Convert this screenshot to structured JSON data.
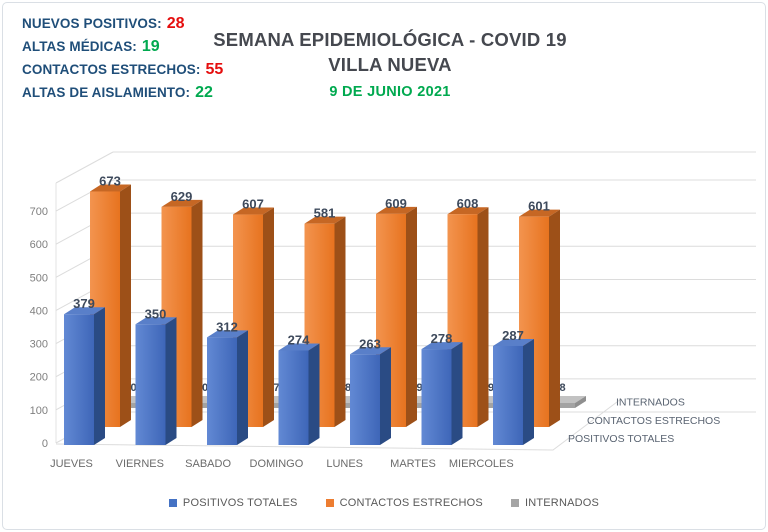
{
  "page": {
    "border_color": "#dadfe5",
    "background": "#ffffff"
  },
  "header": {
    "label_color": "#1F4E79",
    "stats": [
      {
        "label": "NUEVOS POSITIVOS:",
        "value": "28",
        "value_color": "#E50E0E"
      },
      {
        "label": "ALTAS MÉDICAS:",
        "value": "19",
        "value_color": "#00A94F"
      },
      {
        "label": "CONTACTOS ESTRECHOS:",
        "value": "55",
        "value_color": "#E50E0E"
      },
      {
        "label": "ALTAS DE AISLAMIENTO:",
        "value": "22",
        "value_color": "#00A94F"
      }
    ],
    "title_line1": "SEMANA EPIDEMIOLÓGICA - COVID 19",
    "title_line2": "VILLA NUEVA",
    "title_color": "#45484F",
    "date": "9 DE JUNIO 2021",
    "date_color": "#00A94F"
  },
  "chart_data": {
    "type": "bar",
    "projection": "3d",
    "title": "",
    "categories": [
      "JUEVES",
      "VIERNES",
      "SABADO",
      "DOMINGO",
      "LUNES",
      "MARTES",
      "MIERCOLES"
    ],
    "series": [
      {
        "name": "POSITIVOS TOTALES",
        "color": "#4472C4",
        "values": [
          379,
          350,
          312,
          274,
          263,
          278,
          287
        ]
      },
      {
        "name": "CONTACTOS ESTRECHOS",
        "color": "#ED7D31",
        "values": [
          673,
          629,
          607,
          581,
          609,
          608,
          601
        ]
      },
      {
        "name": "INTERNADOS",
        "color": "#A5A5A5",
        "values": [
          0,
          0,
          7,
          8,
          9,
          9,
          8
        ]
      }
    ],
    "y_ticks": [
      "0",
      "100",
      "200",
      "300",
      "400",
      "500",
      "600",
      "700"
    ],
    "ylim": [
      0,
      700
    ],
    "grid": true,
    "data_labels": true,
    "data_label_color": "#3E4A5C",
    "axis_text_color": "#7F7F7F",
    "category_text_color": "#6B6B6B",
    "depth_axis_labels": [
      "POSITIVOS TOTALES",
      "CONTACTOS ESTRECHOS",
      "INTERNADOS"
    ],
    "legend": [
      "POSITIVOS TOTALES",
      "CONTACTOS ESTRECHOS",
      "INTERNADOS"
    ],
    "legend_position": "bottom"
  }
}
